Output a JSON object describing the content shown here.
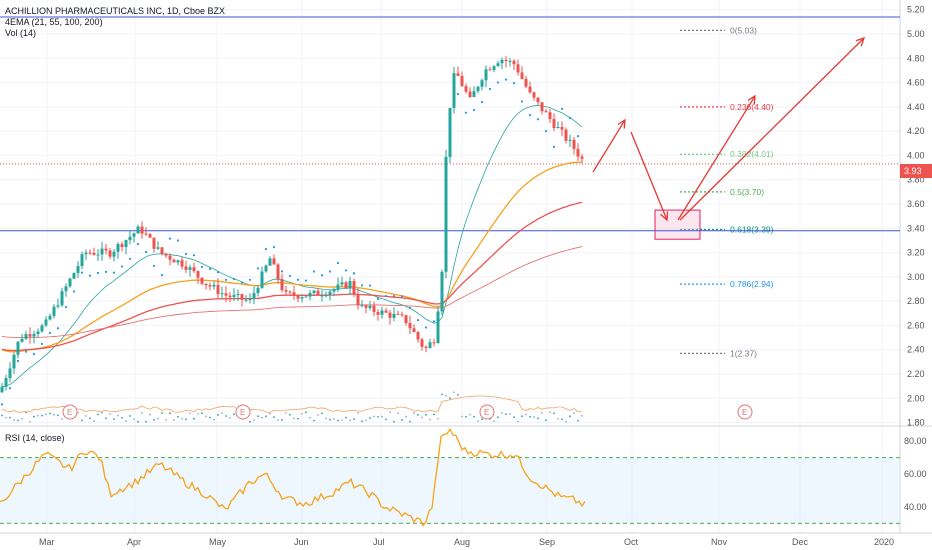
{
  "header": {
    "title": "ACHILLION PHARMACEUTICALS INC, 1D, Cboe BZX",
    "ema_label": "4EMA (21, 55, 100, 200)",
    "vol_label": "Vol (14)",
    "rsi_label": "RSI (14, close)"
  },
  "price_tag": "3.93",
  "chart_data": {
    "type": "candlestick",
    "price_axis": {
      "ticks": [
        "5.20",
        "5.00",
        "4.80",
        "4.60",
        "4.40",
        "4.20",
        "4.00",
        "3.80",
        "3.60",
        "3.40",
        "3.20",
        "3.00",
        "2.80",
        "2.60",
        "2.40",
        "2.20",
        "2.00",
        "1.80"
      ],
      "ylim": [
        1.78,
        5.28
      ]
    },
    "rsi_axis": {
      "ticks": [
        "80.00",
        "60.00",
        "40.00"
      ],
      "ylim": [
        26,
        88
      ],
      "overbought": 70,
      "oversold": 30
    },
    "months": [
      "Mar",
      "Apr",
      "May",
      "Jun",
      "Jul",
      "Aug",
      "Sep",
      "Oct",
      "Nov",
      "Dec",
      "2020"
    ],
    "fib_levels": [
      {
        "label": "0(5.03)",
        "value": 5.03,
        "color": "#787b86"
      },
      {
        "label": "0.236(4.40)",
        "value": 4.4,
        "color": "#f23645"
      },
      {
        "label": "0.382(4.01)",
        "value": 4.01,
        "color": "#81c784"
      },
      {
        "label": "0.5(3.70)",
        "value": 3.7,
        "color": "#4caf50"
      },
      {
        "label": "0.618(3.39)",
        "value": 3.39,
        "color": "#089981"
      },
      {
        "label": "0.786(2.94)",
        "value": 2.94,
        "color": "#2196f3"
      },
      {
        "label": "1(2.37)",
        "value": 2.37,
        "color": "#787b86"
      }
    ],
    "horizontal_lines": [
      5.14,
      3.38
    ],
    "last_price": 3.93,
    "earnings_marker": "E",
    "colors": {
      "up": "#26a69a",
      "down": "#ef5350",
      "ema21": "#26a69a",
      "ema55": "#f7a21b",
      "ema100": "#ef5350",
      "ema200": "#e57373",
      "psar": "#2196f3",
      "rsi": "#f7a21b",
      "hline": "#3d55d9",
      "arrow": "#e53935"
    }
  }
}
